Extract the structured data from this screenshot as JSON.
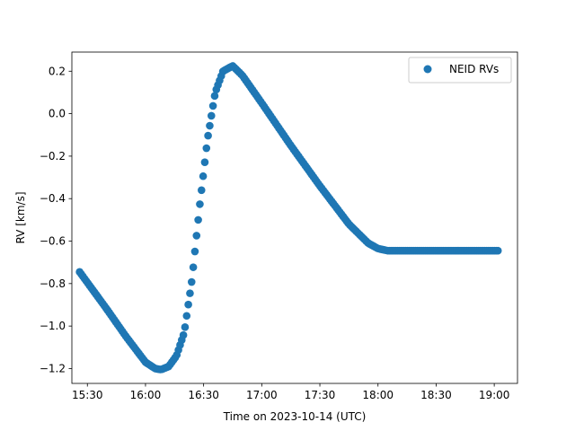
{
  "chart_data": {
    "type": "scatter",
    "xlabel": "Time on 2023-10-14 (UTC)",
    "ylabel": "RV [km/s]",
    "xlim": [
      "15:22",
      "19:12"
    ],
    "ylim": [
      -1.27,
      0.29
    ],
    "x_ticks": [
      "15:30",
      "16:00",
      "16:30",
      "17:00",
      "17:30",
      "18:00",
      "18:30",
      "19:00"
    ],
    "y_ticks": [
      0.2,
      0.0,
      -0.2,
      -0.4,
      -0.6,
      -0.8,
      -1.0,
      -1.2
    ],
    "y_tick_labels": [
      "0.2",
      "0.0",
      "−0.2",
      "−0.4",
      "−0.6",
      "−0.8",
      "−1.0",
      "−1.2"
    ],
    "legend": {
      "position": "upper-right",
      "entries": [
        "NEID RVs"
      ]
    },
    "grid": false,
    "series": [
      {
        "name": "NEID RVs",
        "color": "#1f77b4",
        "curve_points": [
          {
            "x": "15:26",
            "y": -0.745
          },
          {
            "x": "15:40",
            "y": -0.92
          },
          {
            "x": "15:50",
            "y": -1.05
          },
          {
            "x": "16:00",
            "y": -1.17
          },
          {
            "x": "16:05",
            "y": -1.2
          },
          {
            "x": "16:08",
            "y": -1.205
          },
          {
            "x": "16:12",
            "y": -1.19
          },
          {
            "x": "16:16",
            "y": -1.14
          },
          {
            "x": "16:20",
            "y": -1.03
          },
          {
            "x": "16:24",
            "y": -0.78
          },
          {
            "x": "16:28",
            "y": -0.43
          },
          {
            "x": "16:32",
            "y": -0.12
          },
          {
            "x": "16:36",
            "y": 0.1
          },
          {
            "x": "16:40",
            "y": 0.2
          },
          {
            "x": "16:45",
            "y": 0.225
          },
          {
            "x": "16:50",
            "y": 0.18
          },
          {
            "x": "17:00",
            "y": 0.05
          },
          {
            "x": "17:15",
            "y": -0.15
          },
          {
            "x": "17:30",
            "y": -0.34
          },
          {
            "x": "17:45",
            "y": -0.52
          },
          {
            "x": "17:55",
            "y": -0.61
          },
          {
            "x": "18:00",
            "y": -0.635
          },
          {
            "x": "18:05",
            "y": -0.645
          },
          {
            "x": "19:02",
            "y": -0.645
          }
        ]
      }
    ]
  }
}
